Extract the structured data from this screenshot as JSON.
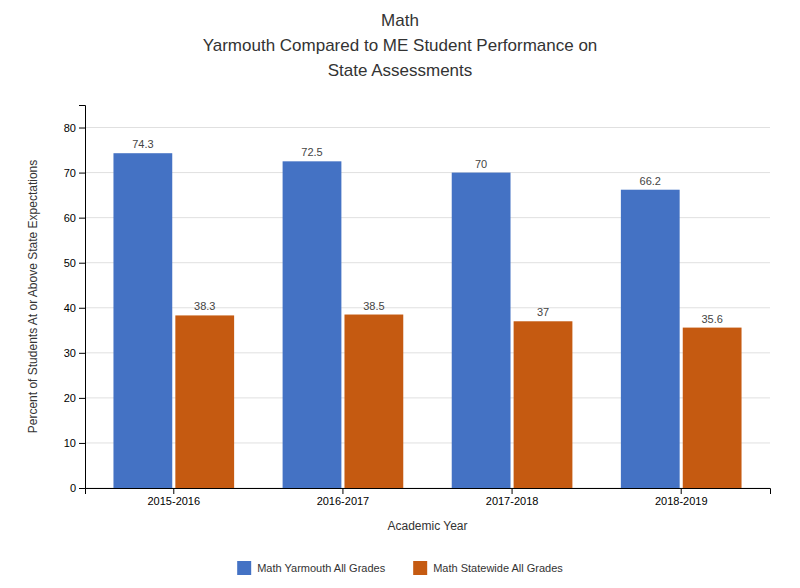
{
  "chart_data": {
    "type": "bar",
    "title": [
      "Math",
      "Yarmouth Compared to ME Student Performance on",
      "State Assessments"
    ],
    "x_label": "Academic Year",
    "y_label": "Percent of Students At or Above State Expectations",
    "categories": [
      "2015-2016",
      "2016-2017",
      "2017-2018",
      "2018-2019"
    ],
    "series": [
      {
        "name": "Math Yarmouth All Grades",
        "color": "#4472C4",
        "values": [
          74.3,
          72.5,
          70,
          66.2
        ]
      },
      {
        "name": "Math Statewide All Grades",
        "color": "#C55A11",
        "values": [
          38.3,
          38.5,
          37,
          35.6
        ]
      }
    ],
    "ylim": [
      0,
      85
    ],
    "yticks": [
      0,
      10,
      20,
      30,
      40,
      50,
      60,
      70,
      80
    ],
    "grid": true,
    "data_labels": true,
    "legend": "bottom"
  }
}
